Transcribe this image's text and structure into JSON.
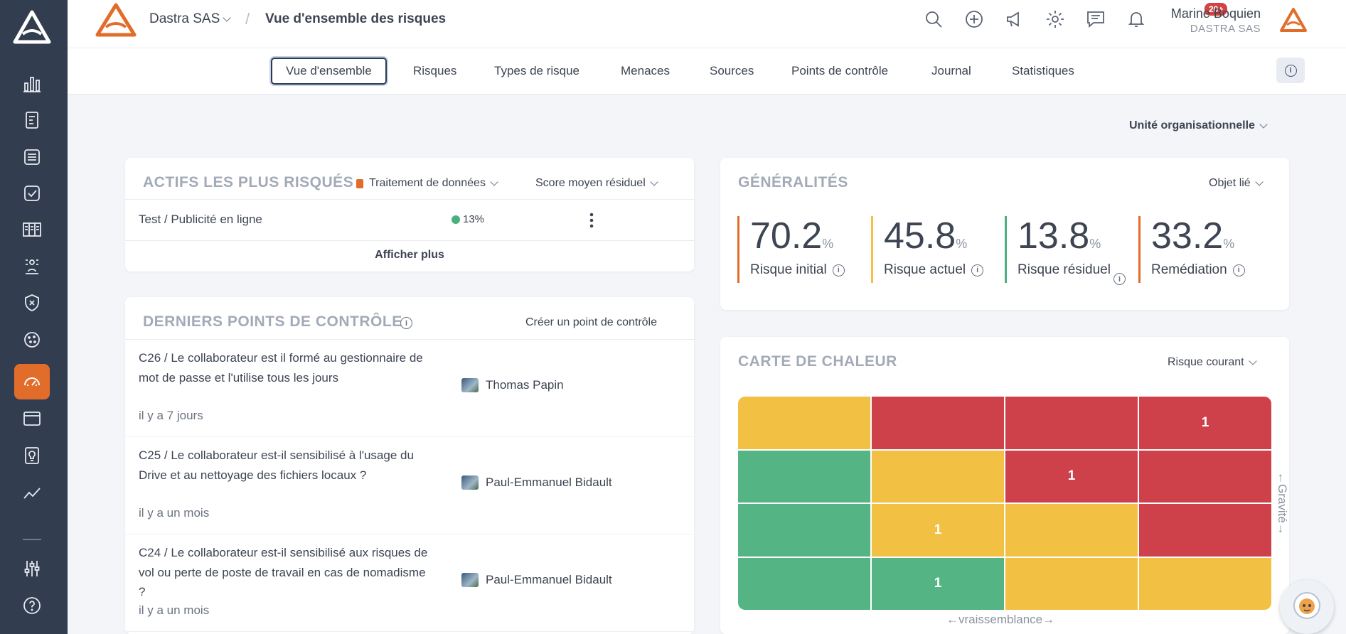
{
  "header": {
    "org": "Dastra SAS",
    "page_title": "Vue d'ensemble des risques",
    "user_name": "Marine Boquien",
    "user_org": "DASTRA SAS",
    "notifications_badge": "20+",
    "icons": [
      "search-icon",
      "add-icon",
      "announcement-icon",
      "settings-icon",
      "messages-icon",
      "bell-icon"
    ]
  },
  "sidebar": {
    "items": [
      "dashboard-icon",
      "registry-icon",
      "database-icon",
      "checklist-icon",
      "catalog-icon",
      "workflow-icon",
      "security-shield-icon",
      "cookie-icon",
      "risk-gauge-icon",
      "window-icon",
      "audit-icon",
      "analytics-icon",
      "settings-sliders-icon",
      "help-icon"
    ],
    "active": "risk-gauge-icon",
    "accent": "#e26d2b"
  },
  "tabs": [
    "Vue d'ensemble",
    "Risques",
    "Types de risque",
    "Menaces",
    "Sources",
    "Points de contrôle",
    "Journal",
    "Statistiques"
  ],
  "active_tab": "Vue d'ensemble",
  "unit_select": "Unité organisationnelle",
  "actifs": {
    "title": "ACTIFS LES PLUS RISQUÉS",
    "filter_type": "Traitement de données",
    "filter_score": "Score moyen résiduel",
    "rows": [
      {
        "name": "Test / Publicité en ligne",
        "score": "13%",
        "status_color": "#4caf7e"
      }
    ],
    "show_more": "Afficher plus"
  },
  "controles": {
    "title": "DERNIERS POINTS DE CONTRÔLE",
    "create": "Créer un point de contrôle",
    "items": [
      {
        "text": "C26 / Le collaborateur est il formé au gestionnaire de mot de passe et l'utilise tous les jours",
        "time": "il y a 7 jours",
        "user": "Thomas Papin"
      },
      {
        "text": "C25 / Le collaborateur est-il sensibilisé à l'usage du Drive et au nettoyage des fichiers locaux ?",
        "time": "il y a un mois",
        "user": "Paul-Emmanuel Bidault"
      },
      {
        "text": "C24 / Le collaborateur est-il sensibilisé aux risques de vol ou perte de poste de travail en cas de nomadisme ?",
        "time": "il y a un mois",
        "user": "Paul-Emmanuel Bidault"
      }
    ]
  },
  "generalites": {
    "title": "GÉNÉRALITÉS",
    "filter": "Objet lié",
    "kpis": [
      {
        "value": "70.2",
        "unit": "%",
        "label": "Risque initial",
        "color": "#e26d2b"
      },
      {
        "value": "45.8",
        "unit": "%",
        "label": "Risque actuel",
        "color": "#f2c043"
      },
      {
        "value": "13.8",
        "unit": "%",
        "label": "Risque résiduel",
        "color": "#4caf7e"
      },
      {
        "value": "33.2",
        "unit": "%",
        "label": "Remédiation",
        "color": "#e26d2b"
      }
    ]
  },
  "heatmap": {
    "title": "CARTE DE CHALEUR",
    "filter": "Risque courant",
    "x_label": "←vraissemblance→",
    "y_label": "←Gravité→",
    "rows": [
      [
        {
          "c": "y",
          "v": ""
        },
        {
          "c": "r",
          "v": ""
        },
        {
          "c": "r",
          "v": ""
        },
        {
          "c": "r",
          "v": "1"
        }
      ],
      [
        {
          "c": "g",
          "v": ""
        },
        {
          "c": "y",
          "v": ""
        },
        {
          "c": "r",
          "v": "1"
        },
        {
          "c": "r",
          "v": ""
        }
      ],
      [
        {
          "c": "g",
          "v": ""
        },
        {
          "c": "y",
          "v": "1"
        },
        {
          "c": "y",
          "v": ""
        },
        {
          "c": "r",
          "v": ""
        }
      ],
      [
        {
          "c": "g",
          "v": ""
        },
        {
          "c": "g",
          "v": "1"
        },
        {
          "c": "y",
          "v": ""
        },
        {
          "c": "y",
          "v": ""
        }
      ]
    ],
    "colors": {
      "green": "#55b484",
      "yellow": "#f2c043",
      "red": "#cf414a"
    }
  }
}
